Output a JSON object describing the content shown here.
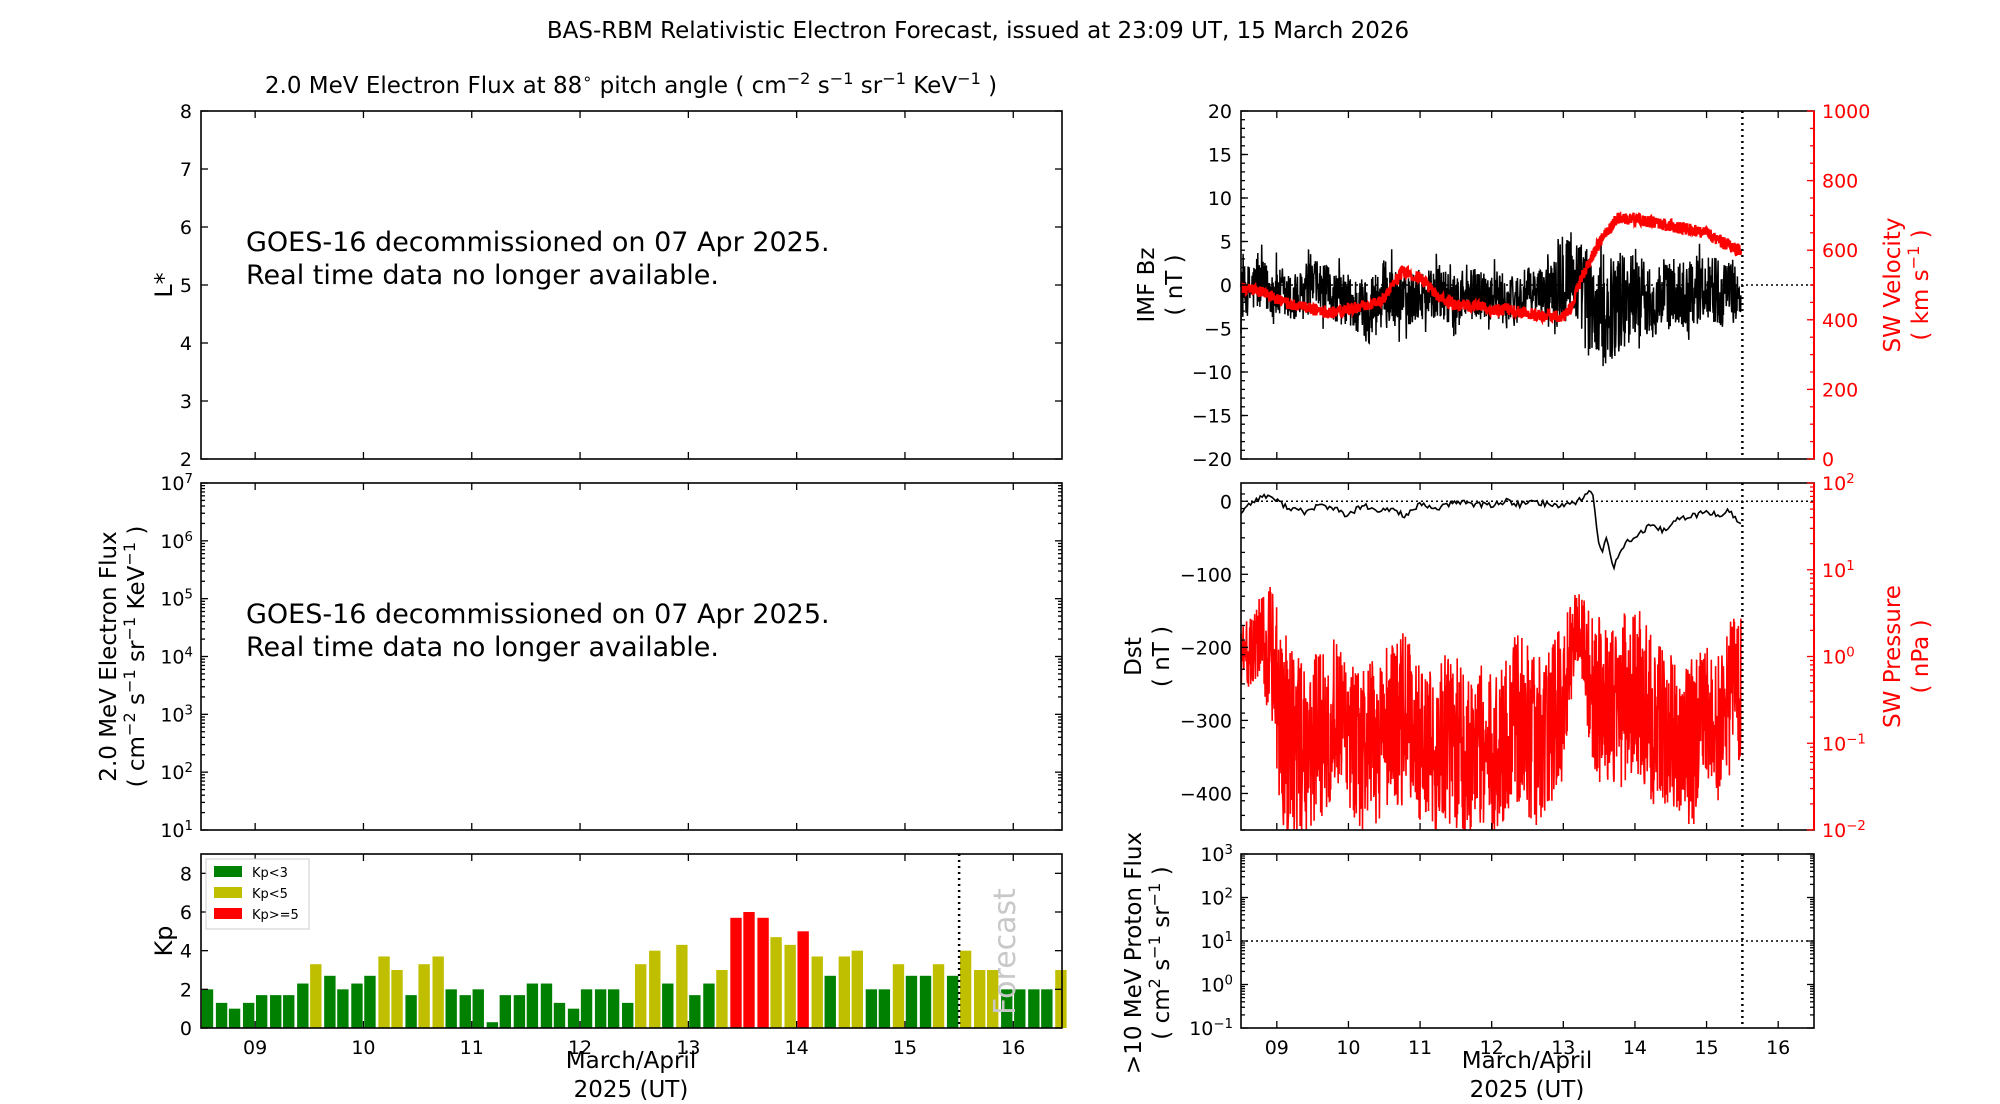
{
  "figure": {
    "title": "BAS-RBM Relativistic Electron Forecast, issued at 23:09 UT, 15 March 2026",
    "no_data_line1": "GOES-16 decommissioned on 07 Apr 2025.",
    "no_data_line2": "Real time data no longer available.",
    "xlabel_line1": "March/April",
    "xlabel_line2": "2025 (UT)",
    "day_ticks": [
      "09",
      "10",
      "11",
      "12",
      "13",
      "14",
      "15",
      "16"
    ],
    "forecast_label": "Forecast"
  },
  "colors": {
    "kp_low": "#008000",
    "kp_mid": "#bfbf00",
    "kp_high": "#ff0000",
    "red_axis": "#ff0000",
    "black": "#000000",
    "forecast_text": "#c8c8c8"
  },
  "chart_data": [
    {
      "id": "lstar_flux",
      "type": "heatmap",
      "title_prefix": "2.0 MeV Electron Flux at 88",
      "title_degree": "∘",
      "title_mid": " pitch angle ( ",
      "title_units": [
        "cm",
        "−2",
        " s",
        "−1",
        " sr",
        "−1",
        " KeV",
        "−1",
        " )"
      ],
      "ylabel": "L*",
      "ylim": [
        2,
        8
      ],
      "yticks": [
        "2",
        "3",
        "4",
        "5",
        "6",
        "7",
        "8"
      ],
      "values": []
    },
    {
      "id": "electron_flux",
      "type": "line",
      "ylabel_line1": "2.0 MeV Electron Flux",
      "ylabel_line2": [
        "( cm",
        "−2",
        " s",
        "−1",
        " sr",
        "−1",
        " KeV",
        "−1",
        " )"
      ],
      "ylim": [
        10,
        10000000
      ],
      "yscale": "log",
      "ytick_exponents": [
        "1",
        "2",
        "3",
        "4",
        "5",
        "6",
        "7"
      ],
      "values": []
    },
    {
      "id": "kp",
      "type": "bar",
      "ylabel": "Kp",
      "ylim": [
        0,
        9
      ],
      "yticks": [
        "0",
        "2",
        "4",
        "6",
        "8"
      ],
      "xlim_days": [
        8.5,
        16.45
      ],
      "forecast_start_day": 15.5,
      "bar_width_days": 0.105,
      "legend": [
        "Kp<3",
        "Kp<5",
        "Kp>=5"
      ],
      "legend_position": "top-left",
      "x_days": [
        8.56,
        8.69,
        8.81,
        8.94,
        9.06,
        9.19,
        9.31,
        9.44,
        9.56,
        9.69,
        9.81,
        9.94,
        10.06,
        10.19,
        10.31,
        10.44,
        10.56,
        10.69,
        10.81,
        10.94,
        11.06,
        11.19,
        11.31,
        11.44,
        11.56,
        11.69,
        11.81,
        11.94,
        12.06,
        12.19,
        12.31,
        12.44,
        12.56,
        12.69,
        12.81,
        12.94,
        13.06,
        13.19,
        13.31,
        13.44,
        13.56,
        13.69,
        13.81,
        13.94,
        14.06,
        14.19,
        14.31,
        14.44,
        14.56,
        14.69,
        14.81,
        14.94,
        15.06,
        15.19,
        15.31,
        15.44,
        15.56,
        15.69,
        15.81,
        15.94,
        16.06,
        16.19,
        16.31,
        16.44
      ],
      "values": [
        2.0,
        1.3,
        1.0,
        1.3,
        1.7,
        1.7,
        1.7,
        2.3,
        3.3,
        2.7,
        2.0,
        2.3,
        2.7,
        3.7,
        3.0,
        1.7,
        3.3,
        3.7,
        2.0,
        1.7,
        2.0,
        0.3,
        1.7,
        1.7,
        2.3,
        2.3,
        1.3,
        1.0,
        2.0,
        2.0,
        2.0,
        1.3,
        3.3,
        4.0,
        2.3,
        4.3,
        1.7,
        2.3,
        3.0,
        5.7,
        6.0,
        5.7,
        4.7,
        4.3,
        5.0,
        3.7,
        2.7,
        3.7,
        4.0,
        2.0,
        2.0,
        3.3,
        2.7,
        2.7,
        3.3,
        2.7,
        4.0,
        3.0,
        3.0,
        2.0,
        2.0,
        2.0,
        2.0,
        3.0
      ]
    },
    {
      "id": "imf_bz_sw_velocity",
      "type": "line",
      "ylabel_line1": "IMF Bz",
      "ylabel_line2": "( nT )",
      "ylim": [
        -20,
        20
      ],
      "yticks": [
        "−20",
        "−15",
        "−10",
        "−5",
        "0",
        "5",
        "10",
        "15",
        "20"
      ],
      "y2label_line1": "SW Velocity",
      "y2label_line2": [
        "( km s",
        "−1",
        " )"
      ],
      "y2lim": [
        0,
        1000
      ],
      "y2ticks": [
        "0",
        "200",
        "400",
        "600",
        "800",
        "1000"
      ],
      "xlim_days": [
        8.5,
        16.5
      ],
      "now_day": 15.5,
      "series": [
        {
          "key": "bz",
          "color": "#000000",
          "x_days": [
            8.5,
            8.75,
            9.0,
            9.25,
            9.5,
            9.75,
            10.0,
            10.25,
            10.5,
            10.75,
            11.0,
            11.25,
            11.5,
            11.75,
            12.0,
            12.25,
            12.5,
            12.75,
            13.0,
            13.25,
            13.5,
            13.75,
            14.0,
            14.25,
            14.5,
            14.75,
            15.0,
            15.25,
            15.45
          ],
          "values": [
            -1,
            0,
            -1,
            -2,
            0,
            -1,
            -2,
            -3,
            -1,
            -2,
            -1,
            -1,
            -2,
            -1,
            -1,
            -2,
            -1,
            -1,
            2,
            0,
            -4,
            -2,
            -1,
            -2,
            -1,
            -1,
            0,
            -1,
            -1
          ],
          "spread": [
            3,
            3,
            3,
            3,
            3,
            3,
            3,
            4,
            4,
            3,
            3,
            3,
            3,
            3,
            3,
            3,
            3,
            3,
            6,
            5,
            6,
            6,
            5,
            4,
            4,
            4,
            4,
            4,
            3
          ]
        },
        {
          "key": "velocity",
          "color": "#ff0000",
          "x_days": [
            8.5,
            8.75,
            9.0,
            9.25,
            9.5,
            9.75,
            10.0,
            10.25,
            10.5,
            10.75,
            11.0,
            11.25,
            11.5,
            11.75,
            12.0,
            12.25,
            12.5,
            12.75,
            13.0,
            13.1,
            13.25,
            13.5,
            13.75,
            14.0,
            14.25,
            14.5,
            14.75,
            15.0,
            15.25,
            15.45
          ],
          "values": [
            490,
            480,
            460,
            440,
            430,
            420,
            430,
            440,
            460,
            540,
            520,
            470,
            440,
            440,
            430,
            430,
            420,
            410,
            410,
            430,
            520,
            620,
            690,
            690,
            680,
            670,
            660,
            650,
            620,
            600
          ]
        }
      ]
    },
    {
      "id": "dst_sw_pressure",
      "type": "line",
      "ylabel_line1": "Dst",
      "ylabel_line2": "( nT )",
      "ylim": [
        -450,
        25
      ],
      "yticks": [
        "−400",
        "−300",
        "−200",
        "−100",
        "0"
      ],
      "y2label_line1": "SW Pressure",
      "y2label_line2": "( nPa )",
      "y2lim": [
        0.01,
        100
      ],
      "y2scale": "log",
      "y2tick_exponents": [
        "−2",
        "−1",
        "0",
        "1",
        "2"
      ],
      "xlim_days": [
        8.5,
        16.5
      ],
      "now_day": 15.5,
      "series": [
        {
          "key": "dst",
          "color": "#000000",
          "x_days": [
            8.5,
            8.6,
            8.75,
            8.9,
            9.0,
            9.2,
            9.4,
            9.6,
            9.8,
            10.0,
            10.2,
            10.4,
            10.6,
            10.8,
            11.0,
            11.2,
            11.4,
            11.6,
            11.8,
            12.0,
            12.2,
            12.4,
            12.6,
            12.8,
            13.0,
            13.2,
            13.4,
            13.5,
            13.55,
            13.6,
            13.7,
            13.8,
            13.9,
            14.0,
            14.2,
            14.4,
            14.6,
            14.8,
            15.0,
            15.2,
            15.3,
            15.45
          ],
          "values": [
            -15,
            -5,
            5,
            8,
            0,
            -10,
            -15,
            -5,
            -10,
            -20,
            -5,
            -15,
            -10,
            -20,
            -5,
            -10,
            -5,
            0,
            -5,
            -5,
            0,
            -5,
            0,
            -5,
            -5,
            0,
            15,
            -60,
            -70,
            -50,
            -90,
            -65,
            -55,
            -50,
            -35,
            -40,
            -25,
            -20,
            -15,
            -20,
            -10,
            -30
          ]
        },
        {
          "key": "pressure",
          "color": "#ff0000",
          "x_days": [
            8.5,
            8.7,
            8.8,
            8.9,
            9.0,
            9.1,
            9.2,
            9.4,
            9.6,
            9.8,
            10.0,
            10.2,
            10.4,
            10.6,
            10.8,
            11.0,
            11.2,
            11.4,
            11.6,
            11.8,
            12.0,
            12.2,
            12.4,
            12.6,
            12.8,
            13.0,
            13.1,
            13.2,
            13.3,
            13.4,
            13.6,
            13.8,
            14.0,
            14.2,
            14.4,
            14.6,
            14.8,
            15.0,
            15.2,
            15.45
          ],
          "values": [
            1.0,
            1.2,
            1.5,
            0.9,
            0.3,
            0.15,
            0.1,
            0.08,
            0.12,
            0.2,
            0.1,
            0.08,
            0.1,
            0.15,
            0.2,
            0.1,
            0.08,
            0.12,
            0.08,
            0.1,
            0.06,
            0.12,
            0.2,
            0.1,
            0.15,
            0.3,
            1.0,
            2.5,
            1.0,
            0.4,
            0.25,
            0.3,
            0.4,
            0.2,
            0.15,
            0.12,
            0.1,
            0.2,
            0.15,
            0.5
          ],
          "spread_decades": [
            0.35,
            0.45,
            0.6,
            0.9,
            1.1,
            1.2,
            1.1,
            1.0,
            1.0,
            0.9,
            0.9,
            1.0,
            1.0,
            1.0,
            1.0,
            0.9,
            1.0,
            1.0,
            1.0,
            1.0,
            1.0,
            1.0,
            1.0,
            1.0,
            1.0,
            0.9,
            0.6,
            0.5,
            0.7,
            0.9,
            1.0,
            1.0,
            1.0,
            1.0,
            0.9,
            0.9,
            1.0,
            0.8,
            0.9,
            0.9
          ]
        }
      ]
    },
    {
      "id": "proton_flux",
      "type": "line",
      "ylabel_line1": ">10 MeV Proton Flux",
      "ylabel_line2": [
        "( cm",
        "2",
        " s",
        "−1",
        " sr",
        "−1",
        " )"
      ],
      "ylim": [
        0.1,
        1000
      ],
      "yscale": "log",
      "ytick_exponents": [
        "−1",
        "0",
        "1",
        "2",
        "3"
      ],
      "threshold": 10,
      "xlim_days": [
        8.5,
        16.5
      ],
      "now_day": 15.5,
      "values": []
    }
  ]
}
